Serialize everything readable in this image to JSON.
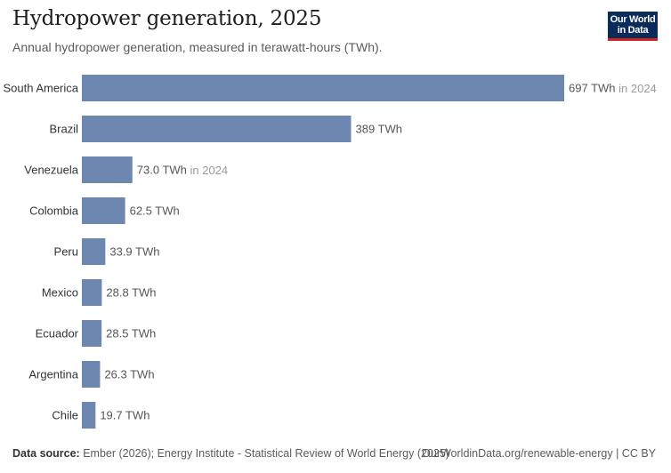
{
  "header": {
    "title": "Hydropower generation, 2025",
    "subtitle": "Annual hydropower generation, measured in terawatt-hours (TWh).",
    "logo_line1": "Our World",
    "logo_line2": "in Data"
  },
  "footer": {
    "source_label": "Data source:",
    "source_text": "Ember (2026); Energy Institute - Statistical Review of World Energy (2025)",
    "url_license": "OurWorldinData.org/renewable-energy | CC BY"
  },
  "colors": {
    "bar": "#6d87b0",
    "logo_bg": "#0b2b5b",
    "logo_accent": "#ce261e"
  },
  "chart_data": {
    "type": "bar",
    "orientation": "horizontal",
    "title": "Hydropower generation, 2025",
    "subtitle": "Annual hydropower generation, measured in terawatt-hours (TWh).",
    "unit": "TWh",
    "categories": [
      "South America",
      "Brazil",
      "Venezuela",
      "Colombia",
      "Peru",
      "Mexico",
      "Ecuador",
      "Argentina",
      "Chile"
    ],
    "values": [
      697,
      389,
      73.0,
      62.5,
      33.9,
      28.8,
      28.5,
      26.3,
      19.7
    ],
    "value_labels": [
      "697 TWh",
      "389 TWh",
      "73.0 TWh",
      "62.5 TWh",
      "33.9 TWh",
      "28.8 TWh",
      "28.5 TWh",
      "26.3 TWh",
      "19.7 TWh"
    ],
    "year_notes": [
      "in 2024",
      "",
      "in 2024",
      "",
      "",
      "",
      "",
      "",
      ""
    ],
    "xlim": [
      0,
      697
    ],
    "grid": false,
    "legend": "none"
  }
}
